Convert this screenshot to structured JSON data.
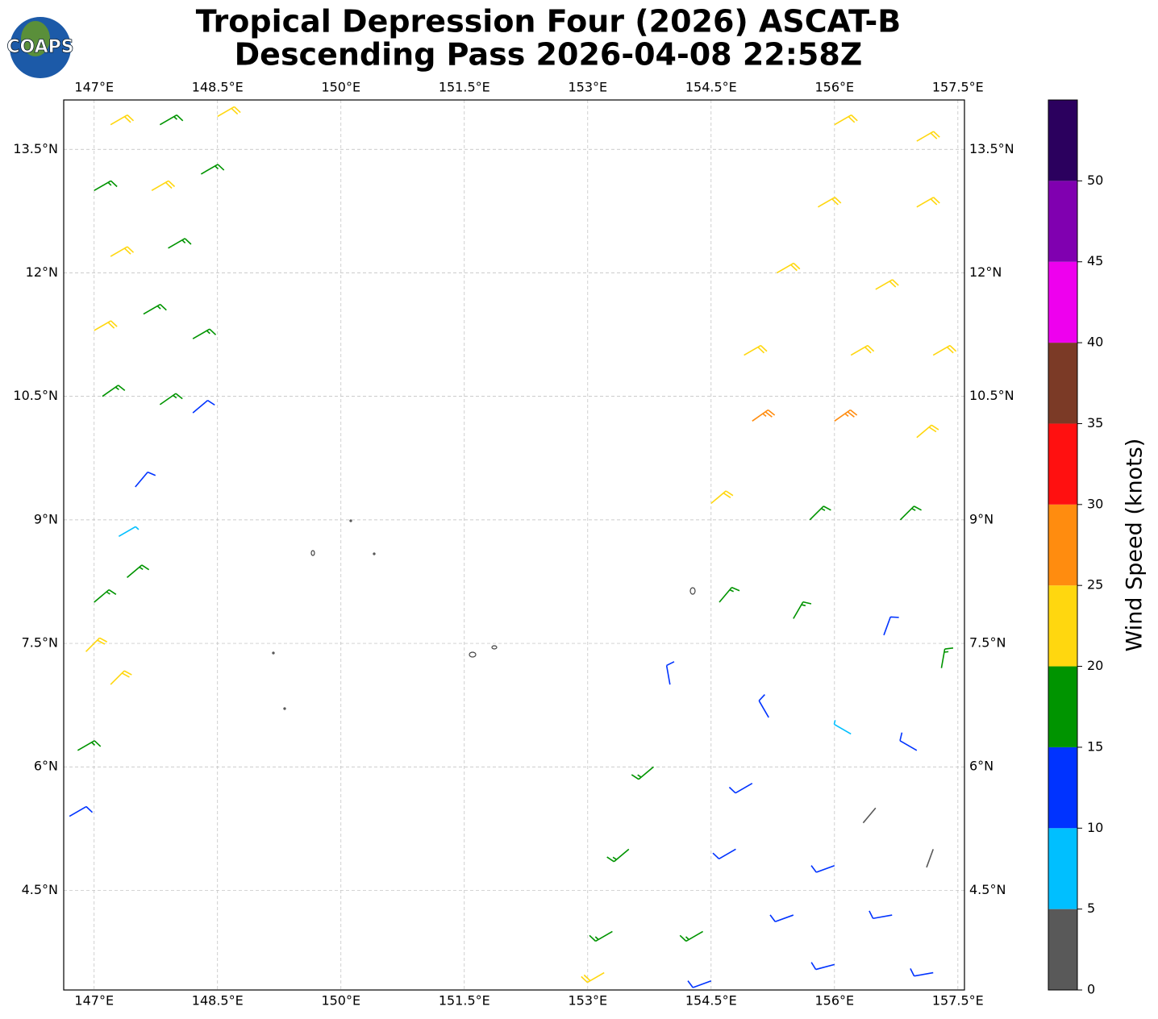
{
  "logo": "COAPS",
  "chart_data": {
    "type": "barbs",
    "title": [
      "Tropical Depression Four (2026) ASCAT-B",
      "Descending Pass 2026-04-08 22:58Z"
    ],
    "xlim": [
      146.63,
      157.58
    ],
    "ylim": [
      3.29,
      14.1
    ],
    "grid": true,
    "xticks": [
      {
        "value": 147,
        "label": "147°E"
      },
      {
        "value": 148.5,
        "label": "148.5°E"
      },
      {
        "value": 150,
        "label": "150°E"
      },
      {
        "value": 151.5,
        "label": "151.5°E"
      },
      {
        "value": 153,
        "label": "153°E"
      },
      {
        "value": 154.5,
        "label": "154.5°E"
      },
      {
        "value": 156,
        "label": "156°E"
      },
      {
        "value": 157.5,
        "label": "157.5°E"
      }
    ],
    "yticks": [
      {
        "value": 4.5,
        "label": "4.5°N"
      },
      {
        "value": 6,
        "label": "6°N"
      },
      {
        "value": 7.5,
        "label": "7.5°N"
      },
      {
        "value": 9,
        "label": "9°N"
      },
      {
        "value": 10.5,
        "label": "10.5°N"
      },
      {
        "value": 12,
        "label": "12°N"
      },
      {
        "value": 13.5,
        "label": "13.5°N"
      }
    ],
    "colorbar": {
      "label": "Wind Speed (knots)",
      "bounds": [
        0,
        5,
        10,
        15,
        20,
        25,
        30,
        35,
        40,
        45,
        50,
        55
      ],
      "colors": [
        "#595959",
        "#00bfff",
        "#0033ff",
        "#009400",
        "#ffd70f",
        "#ff8c0f",
        "#ff1010",
        "#7b3a26",
        "#ee00ee",
        "#8000b0",
        "#2b005e"
      ],
      "ticks": [
        0,
        5,
        10,
        15,
        20,
        25,
        30,
        35,
        40,
        45,
        50
      ]
    },
    "barbs": [
      {
        "lon": 147.2,
        "lat": 13.8,
        "speed": 22,
        "dir": 60
      },
      {
        "lon": 147.8,
        "lat": 13.8,
        "speed": 18,
        "dir": 60
      },
      {
        "lon": 148.5,
        "lat": 13.9,
        "speed": 21,
        "dir": 60
      },
      {
        "lon": 147.0,
        "lat": 13.0,
        "speed": 19,
        "dir": 60
      },
      {
        "lon": 147.7,
        "lat": 13.0,
        "speed": 22,
        "dir": 60
      },
      {
        "lon": 148.3,
        "lat": 13.2,
        "speed": 18,
        "dir": 60
      },
      {
        "lon": 147.2,
        "lat": 12.2,
        "speed": 23,
        "dir": 60
      },
      {
        "lon": 147.9,
        "lat": 12.3,
        "speed": 17,
        "dir": 60
      },
      {
        "lon": 147.0,
        "lat": 11.3,
        "speed": 21,
        "dir": 60
      },
      {
        "lon": 147.6,
        "lat": 11.5,
        "speed": 18,
        "dir": 60
      },
      {
        "lon": 148.2,
        "lat": 11.2,
        "speed": 17,
        "dir": 60
      },
      {
        "lon": 147.1,
        "lat": 10.5,
        "speed": 18,
        "dir": 55
      },
      {
        "lon": 147.8,
        "lat": 10.4,
        "speed": 17,
        "dir": 55
      },
      {
        "lon": 148.2,
        "lat": 10.3,
        "speed": 12,
        "dir": 50
      },
      {
        "lon": 147.5,
        "lat": 9.4,
        "speed": 12,
        "dir": 40
      },
      {
        "lon": 147.3,
        "lat": 8.8,
        "speed": 8,
        "dir": 60
      },
      {
        "lon": 147.0,
        "lat": 8.0,
        "speed": 18,
        "dir": 50
      },
      {
        "lon": 147.4,
        "lat": 8.3,
        "speed": 17,
        "dir": 50
      },
      {
        "lon": 146.9,
        "lat": 7.4,
        "speed": 22,
        "dir": 45
      },
      {
        "lon": 147.2,
        "lat": 7.0,
        "speed": 21,
        "dir": 45
      },
      {
        "lon": 146.8,
        "lat": 6.2,
        "speed": 16,
        "dir": 60
      },
      {
        "lon": 146.7,
        "lat": 5.4,
        "speed": 14,
        "dir": 60
      },
      {
        "lon": 156.0,
        "lat": 13.8,
        "speed": 21,
        "dir": 60
      },
      {
        "lon": 157.0,
        "lat": 13.6,
        "speed": 22,
        "dir": 60
      },
      {
        "lon": 155.8,
        "lat": 12.8,
        "speed": 22,
        "dir": 60
      },
      {
        "lon": 157.0,
        "lat": 12.8,
        "speed": 22,
        "dir": 60
      },
      {
        "lon": 155.3,
        "lat": 12.0,
        "speed": 22,
        "dir": 60
      },
      {
        "lon": 156.5,
        "lat": 11.8,
        "speed": 21,
        "dir": 60
      },
      {
        "lon": 154.9,
        "lat": 11.0,
        "speed": 22,
        "dir": 60
      },
      {
        "lon": 156.2,
        "lat": 11.0,
        "speed": 23,
        "dir": 60
      },
      {
        "lon": 157.2,
        "lat": 11.0,
        "speed": 22,
        "dir": 60
      },
      {
        "lon": 155.0,
        "lat": 10.2,
        "speed": 27,
        "dir": 55
      },
      {
        "lon": 156.0,
        "lat": 10.2,
        "speed": 27,
        "dir": 55
      },
      {
        "lon": 157.0,
        "lat": 10.0,
        "speed": 22,
        "dir": 50
      },
      {
        "lon": 154.5,
        "lat": 9.2,
        "speed": 22,
        "dir": 50
      },
      {
        "lon": 155.7,
        "lat": 9.0,
        "speed": 18,
        "dir": 45
      },
      {
        "lon": 156.8,
        "lat": 9.0,
        "speed": 17,
        "dir": 45
      },
      {
        "lon": 154.6,
        "lat": 8.0,
        "speed": 17,
        "dir": 40
      },
      {
        "lon": 155.5,
        "lat": 7.8,
        "speed": 15,
        "dir": 30
      },
      {
        "lon": 156.6,
        "lat": 7.6,
        "speed": 14,
        "dir": 20
      },
      {
        "lon": 157.3,
        "lat": 7.2,
        "speed": 18,
        "dir": 10
      },
      {
        "lon": 154.0,
        "lat": 7.0,
        "speed": 12,
        "dir": 350
      },
      {
        "lon": 155.2,
        "lat": 6.6,
        "speed": 11,
        "dir": 330
      },
      {
        "lon": 156.2,
        "lat": 6.4,
        "speed": 8,
        "dir": 300
      },
      {
        "lon": 157.0,
        "lat": 6.2,
        "speed": 13,
        "dir": 300
      },
      {
        "lon": 153.8,
        "lat": 6.0,
        "speed": 17,
        "dir": 230
      },
      {
        "lon": 155.0,
        "lat": 5.8,
        "speed": 13,
        "dir": 240
      },
      {
        "lon": 156.5,
        "lat": 5.5,
        "speed": 4,
        "dir": 220
      },
      {
        "lon": 157.2,
        "lat": 5.0,
        "speed": 4,
        "dir": 200
      },
      {
        "lon": 153.5,
        "lat": 5.0,
        "speed": 17,
        "dir": 230
      },
      {
        "lon": 154.8,
        "lat": 5.0,
        "speed": 13,
        "dir": 240
      },
      {
        "lon": 156.0,
        "lat": 4.8,
        "speed": 12,
        "dir": 250
      },
      {
        "lon": 153.3,
        "lat": 4.0,
        "speed": 18,
        "dir": 240
      },
      {
        "lon": 154.4,
        "lat": 4.0,
        "speed": 17,
        "dir": 240
      },
      {
        "lon": 155.5,
        "lat": 4.2,
        "speed": 12,
        "dir": 250
      },
      {
        "lon": 156.7,
        "lat": 4.2,
        "speed": 12,
        "dir": 260
      },
      {
        "lon": 153.2,
        "lat": 3.5,
        "speed": 22,
        "dir": 240
      },
      {
        "lon": 154.5,
        "lat": 3.4,
        "speed": 13,
        "dir": 250
      },
      {
        "lon": 156.0,
        "lat": 3.6,
        "speed": 12,
        "dir": 255
      },
      {
        "lon": 157.2,
        "lat": 3.5,
        "speed": 12,
        "dir": 260
      }
    ]
  }
}
